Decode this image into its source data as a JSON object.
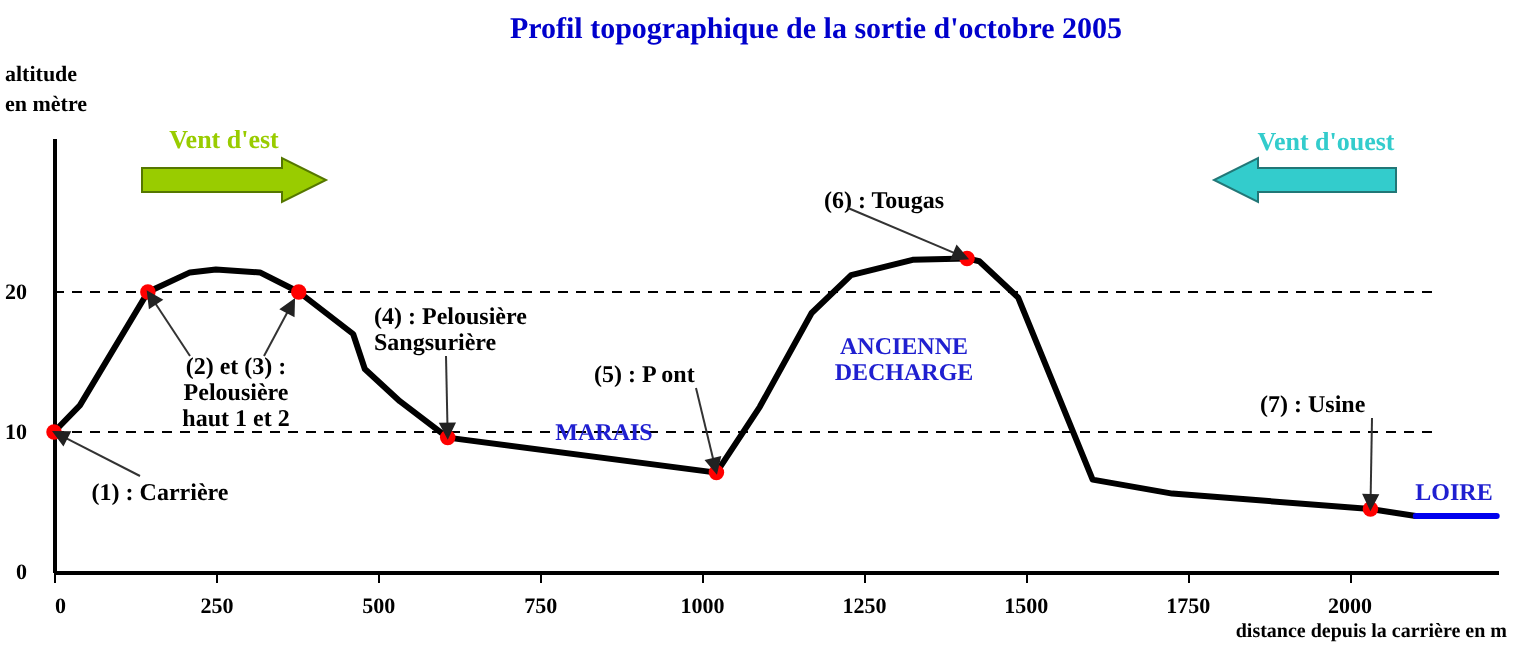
{
  "chart_data": {
    "type": "line",
    "title": "Profil topographique de la sortie d'octobre 2005",
    "xlabel": "distance depuis la carrière en m",
    "ylabel": "altitude\nen mètre",
    "xlim": [
      0,
      2230
    ],
    "xticks": [
      0,
      250,
      500,
      750,
      1000,
      1250,
      1500,
      1750,
      2000
    ],
    "ylim": [
      0,
      31
    ],
    "yticks": [
      0,
      10,
      20
    ],
    "grid": false,
    "series": [
      {
        "color": "#000000",
        "x": [
          0,
          40,
          145,
          210,
          250,
          318,
          378,
          462,
          480,
          534,
          608,
          1023,
          1090,
          1170,
          1231,
          1326,
          1410,
          1429,
          1489,
          1604,
          1727,
          2033,
          2103
        ],
        "values": [
          10,
          11.9,
          20,
          21.4,
          21.6,
          21.4,
          20,
          17,
          14.5,
          12.2,
          9.6,
          7.1,
          11.8,
          18.5,
          21.2,
          22.3,
          22.4,
          22.2,
          19.6,
          6.6,
          5.6,
          4.5,
          4.0
        ]
      },
      {
        "color": "#0000ee",
        "x": [
          2103,
          2228
        ],
        "values": [
          4.0,
          4.0
        ]
      },
      {
        "type": "scatter",
        "color": "#ff0000",
        "marker": "circle",
        "x": [
          0,
          145,
          378,
          608,
          1023,
          1410,
          2033
        ],
        "values": [
          10,
          20,
          20,
          9.6,
          7.1,
          22.4,
          4.5
        ]
      }
    ],
    "ref_lines": [
      {
        "axis": "y",
        "value": 10,
        "line_style": "dashed",
        "color": "#000000"
      },
      {
        "axis": "y",
        "value": 20,
        "line_style": "dashed",
        "color": "#000000"
      }
    ],
    "annotations": [
      {
        "text": "(1) : Carrière",
        "x": 0,
        "y": 10
      },
      {
        "text": "(2) et (3) :\nPelousière\nhaut 1 et 2",
        "x": 145,
        "y": 20
      },
      {
        "text": "(4) : Pelousière\nSangsurière",
        "x": 608,
        "y": 9.6
      },
      {
        "text": "(5) : P ont",
        "x": 1023,
        "y": 7.1
      },
      {
        "text": "(6) : Tougas",
        "x": 1410,
        "y": 22.4
      },
      {
        "text": "(7) : Usine",
        "x": 2033,
        "y": 4.5
      },
      "MARAIS",
      "ANCIENNE\nDECHARGE",
      "LOIRE",
      "Vent d'est",
      "Vent d'ouest"
    ]
  }
}
